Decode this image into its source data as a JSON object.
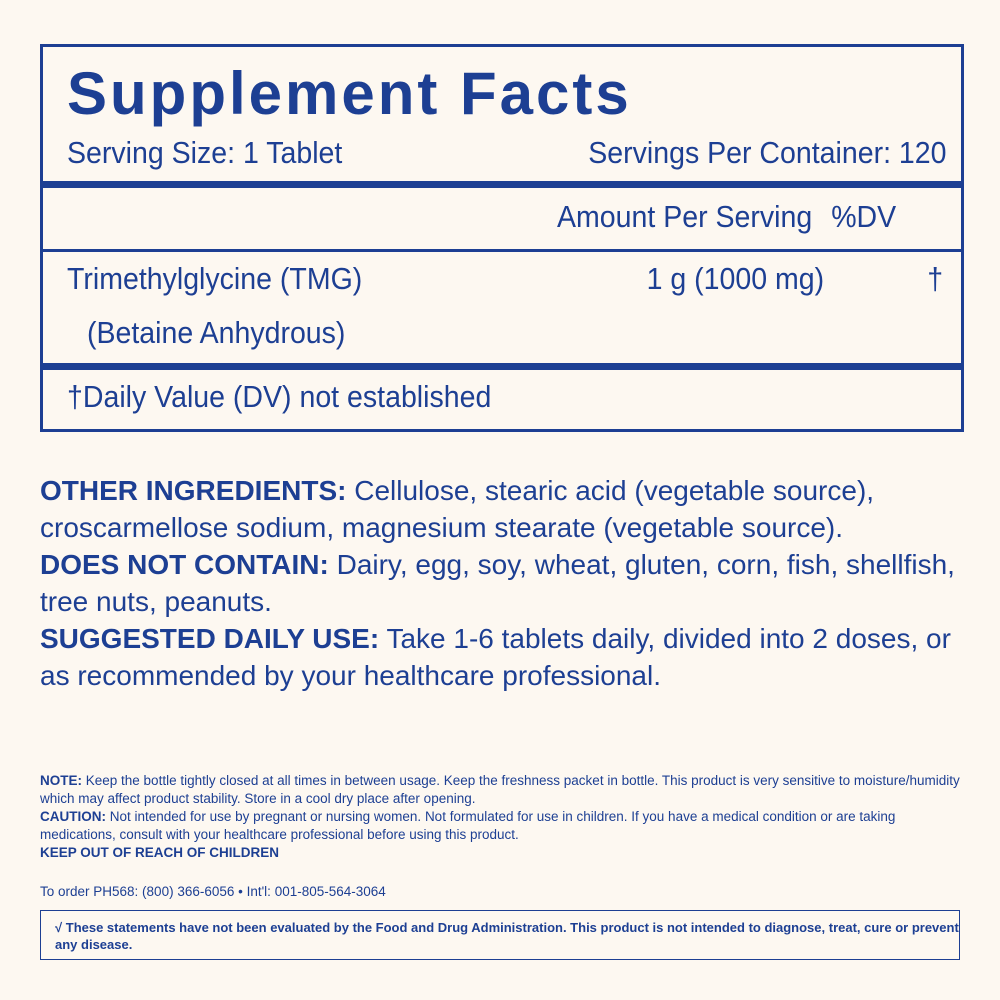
{
  "facts": {
    "title": "Supplement Facts",
    "serving_size": "Serving Size: 1 Tablet",
    "servings_per_container": "Servings Per Container: 120",
    "amount_header": "Amount Per Serving",
    "dv_header": "%DV",
    "ingredient_name": "Trimethylglycine (TMG)",
    "ingredient_sub": "(Betaine Anhydrous)",
    "ingredient_amount": "1 g (1000 mg)",
    "ingredient_dv": "†",
    "footnote": "†Daily Value (DV) not established"
  },
  "other_ingredients": {
    "label": "OTHER INGREDIENTS:",
    "text": " Cellulose, stearic acid (vegetable source), croscarmellose sodium, magnesium stearate (vegetable source)."
  },
  "does_not_contain": {
    "label": "DOES NOT CONTAIN:",
    "text": " Dairy, egg, soy, wheat, gluten, corn, fish, shellfish, tree nuts, peanuts."
  },
  "suggested_use": {
    "label": "SUGGESTED DAILY USE:",
    "text": " Take 1-6 tablets daily, divided into 2 doses, or as recommended by your healthcare professional."
  },
  "note": {
    "label": "NOTE:",
    "text": " Keep the bottle tightly closed at all times in between usage. Keep the freshness packet in bottle. This product is very sensitive to moisture/humidity which may affect product stability. Store in a cool dry place after opening."
  },
  "caution": {
    "label": "CAUTION:",
    "text": " Not intended for use by pregnant or nursing women. Not formulated for use in children. If you have a medical condition or are taking medications, consult with your healthcare professional before using this product."
  },
  "keep_out": "KEEP OUT OF REACH OF CHILDREN",
  "order": "To order PH568: (800) 366-6056 • Int'l: 001-805-564-3064",
  "fda": "√ These statements have not been evaluated by the Food and Drug Administration. This product is not intended to diagnose, treat, cure or prevent any disease."
}
